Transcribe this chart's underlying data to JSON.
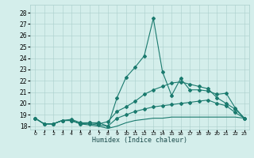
{
  "xlabel": "Humidex (Indice chaleur)",
  "x": [
    0,
    1,
    2,
    3,
    4,
    5,
    6,
    7,
    8,
    9,
    10,
    11,
    12,
    13,
    14,
    15,
    16,
    17,
    18,
    19,
    20,
    21,
    22,
    23
  ],
  "line_flat": [
    18.7,
    18.2,
    18.2,
    18.5,
    18.5,
    18.2,
    18.1,
    18.0,
    17.8,
    18.0,
    18.3,
    18.5,
    18.6,
    18.7,
    18.7,
    18.8,
    18.8,
    18.8,
    18.8,
    18.8,
    18.8,
    18.8,
    18.8,
    18.7
  ],
  "line_low": [
    18.7,
    18.2,
    18.2,
    18.5,
    18.5,
    18.2,
    18.2,
    18.1,
    18.0,
    18.7,
    19.0,
    19.3,
    19.5,
    19.7,
    19.8,
    19.9,
    20.0,
    20.1,
    20.2,
    20.3,
    20.0,
    19.8,
    19.2,
    18.7
  ],
  "line_mid": [
    18.7,
    18.2,
    18.2,
    18.5,
    18.5,
    18.2,
    18.3,
    18.2,
    18.4,
    19.3,
    19.7,
    20.2,
    20.8,
    21.2,
    21.5,
    21.8,
    21.9,
    21.7,
    21.5,
    21.3,
    20.5,
    20.0,
    19.5,
    18.7
  ],
  "line_top": [
    18.7,
    18.2,
    18.2,
    18.5,
    18.6,
    18.3,
    18.3,
    18.3,
    18.0,
    20.5,
    22.3,
    23.2,
    24.2,
    27.5,
    22.8,
    20.7,
    22.2,
    21.2,
    21.2,
    21.1,
    20.8,
    20.9,
    19.6,
    18.7
  ],
  "color": "#1a7a6e",
  "bg_color": "#d4eeeb",
  "grid_color": "#aacfcc",
  "ylim": [
    17.7,
    28.7
  ],
  "yticks": [
    18,
    19,
    20,
    21,
    22,
    23,
    24,
    25,
    26,
    27,
    28
  ],
  "markersize": 2.0,
  "linewidth": 0.8
}
